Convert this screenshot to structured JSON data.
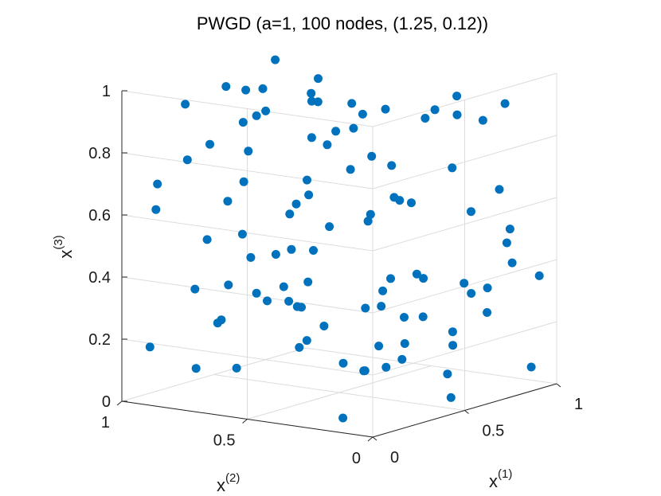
{
  "chart_data": {
    "type": "scatter3d",
    "title": "PWGD (a=1, 100 nodes, (1.25, 0.12))",
    "xlabel": {
      "base": "x",
      "sup": "(1)"
    },
    "ylabel": {
      "base": "x",
      "sup": "(2)"
    },
    "zlabel": {
      "base": "x",
      "sup": "(3)"
    },
    "xlim": [
      0,
      1
    ],
    "ylim": [
      0,
      1
    ],
    "zlim": [
      0,
      1
    ],
    "grid": true,
    "marker_color": "#0072BD",
    "x_ticks": [
      {
        "v": 0,
        "label": "0"
      },
      {
        "v": 0.5,
        "label": "0.5"
      },
      {
        "v": 1,
        "label": "1"
      }
    ],
    "y_ticks": [
      {
        "v": 0,
        "label": "0"
      },
      {
        "v": 0.5,
        "label": "0.5"
      },
      {
        "v": 1,
        "label": "1"
      }
    ],
    "z_ticks": [
      {
        "v": 0,
        "label": "0"
      },
      {
        "v": 0.2,
        "label": "0.2"
      },
      {
        "v": 0.4,
        "label": "0.4"
      },
      {
        "v": 0.6,
        "label": "0.6"
      },
      {
        "v": 0.8,
        "label": "0.8"
      },
      {
        "v": 1,
        "label": "1"
      }
    ],
    "points": [
      [
        0.84,
        0.81,
        0.12
      ],
      [
        0.71,
        0.47,
        0.88
      ],
      [
        0.96,
        0.68,
        0.05
      ],
      [
        0.09,
        0.93,
        0.61
      ],
      [
        0.36,
        0.75,
        0.43
      ],
      [
        0.45,
        0.37,
        0.92
      ],
      [
        0.91,
        0.21,
        0.3
      ],
      [
        0.13,
        0.02,
        0.85
      ],
      [
        0.67,
        0.58,
        0.68
      ],
      [
        0.22,
        0.17,
        0.66
      ],
      [
        0.49,
        0.66,
        0.26
      ],
      [
        0.21,
        0.54,
        0.49
      ],
      [
        0.95,
        0.94,
        0.81
      ],
      [
        0.04,
        0.45,
        0.38
      ],
      [
        0.63,
        0.9,
        0.91
      ],
      [
        0.66,
        0.52,
        0.04
      ],
      [
        0.55,
        0.35,
        0.09
      ],
      [
        0.69,
        0.83,
        0.39
      ],
      [
        0.88,
        0.95,
        0.49
      ],
      [
        0.36,
        0.11,
        0.68
      ],
      [
        0.07,
        0.79,
        0.79
      ],
      [
        0.39,
        0.99,
        0.04
      ],
      [
        0.8,
        0.67,
        0.86
      ],
      [
        0.42,
        0.01,
        0.13
      ],
      [
        0.91,
        0.12,
        0.5
      ],
      [
        0.79,
        0.26,
        0.13
      ],
      [
        0.46,
        0.51,
        0.54
      ],
      [
        0.97,
        0.64,
        0.27
      ],
      [
        0.25,
        0.42,
        0.51
      ],
      [
        0.76,
        0.03,
        0.94
      ],
      [
        0.29,
        0.33,
        0.15
      ],
      [
        0.92,
        0.17,
        0.62
      ],
      [
        0.09,
        0.58,
        0.74
      ],
      [
        0.04,
        0.06,
        0.2
      ],
      [
        0.74,
        0.76,
        0.94
      ],
      [
        0.28,
        0.12,
        0.71
      ],
      [
        0.94,
        0.48,
        0.81
      ],
      [
        0.31,
        0.77,
        0.08
      ],
      [
        0.45,
        0.29,
        0.36
      ],
      [
        0.89,
        0.8,
        0.74
      ],
      [
        0.18,
        0.99,
        0.67
      ],
      [
        0.71,
        0.55,
        0.23
      ],
      [
        0.53,
        0.07,
        0.24
      ],
      [
        0.63,
        0.07,
        0.61
      ],
      [
        0.33,
        0.04,
        0.45
      ],
      [
        0.04,
        0.36,
        0.67
      ],
      [
        0.2,
        0.61,
        0.93
      ],
      [
        0.35,
        0.72,
        0.32
      ],
      [
        0.18,
        0.75,
        0.25
      ],
      [
        0.37,
        0.98,
        0.3
      ],
      [
        0.73,
        0.2,
        0.95
      ],
      [
        0.48,
        0.93,
        0.57
      ],
      [
        0.94,
        0.25,
        0.83
      ],
      [
        0.03,
        0.91,
        0.18
      ],
      [
        0.21,
        0.65,
        0.81
      ],
      [
        0.55,
        0.83,
        0.86
      ],
      [
        0.84,
        0.06,
        0.41
      ],
      [
        0.87,
        0.39,
        0.86
      ],
      [
        0.77,
        0.03,
        0.49
      ],
      [
        0.1,
        0.15,
        0.96
      ],
      [
        0.76,
        0.45,
        0.58
      ],
      [
        0.5,
        0.97,
        0.18
      ],
      [
        0.99,
        0.73,
        0.65
      ],
      [
        0.95,
        0.58,
        0.02
      ],
      [
        0.76,
        0.85,
        0.06
      ],
      [
        0.82,
        0.99,
        0.96
      ],
      [
        0.96,
        0.04,
        0.35
      ],
      [
        0.81,
        0.23,
        0.33
      ],
      [
        0.06,
        0.01,
        0.41
      ],
      [
        0.47,
        0.6,
        0.63
      ],
      [
        0.28,
        0.79,
        0.99
      ],
      [
        0.56,
        0.93,
        0.45
      ],
      [
        0.16,
        0.38,
        0.24
      ],
      [
        0.11,
        0.73,
        0.84
      ],
      [
        0.65,
        0.72,
        0.77
      ],
      [
        0.43,
        0.19,
        0.29
      ],
      [
        0.25,
        0.7,
        0.89
      ],
      [
        0.57,
        0.29,
        0.17
      ],
      [
        0.86,
        0.43,
        0.19
      ],
      [
        0.07,
        0.17,
        0.03
      ],
      [
        0.42,
        0.57,
        0.69
      ],
      [
        0.33,
        0.46,
        0.97
      ],
      [
        0.65,
        0.14,
        0.91
      ],
      [
        0.08,
        0.24,
        0.9
      ],
      [
        0.84,
        0.9,
        0.17
      ],
      [
        0.62,
        0.7,
        0.92
      ],
      [
        0.89,
        0.26,
        0.28
      ],
      [
        0.95,
        0.38,
        0.66
      ],
      [
        0.14,
        0.85,
        0.95
      ],
      [
        0.58,
        0.76,
        0.25
      ],
      [
        0.48,
        0.04,
        0.04
      ],
      [
        0.99,
        0.27,
        0.2
      ],
      [
        0.0,
        0.66,
        0.56
      ],
      [
        0.13,
        0.45,
        0.41
      ],
      [
        0.78,
        0.83,
        0.27
      ],
      [
        0.93,
        0.05,
        0.06
      ],
      [
        0.52,
        0.4,
        0.56
      ],
      [
        0.17,
        0.7,
        0.38
      ],
      [
        0.66,
        0.99,
        0.89
      ],
      [
        0.84,
        0.44,
        0.33
      ]
    ]
  }
}
